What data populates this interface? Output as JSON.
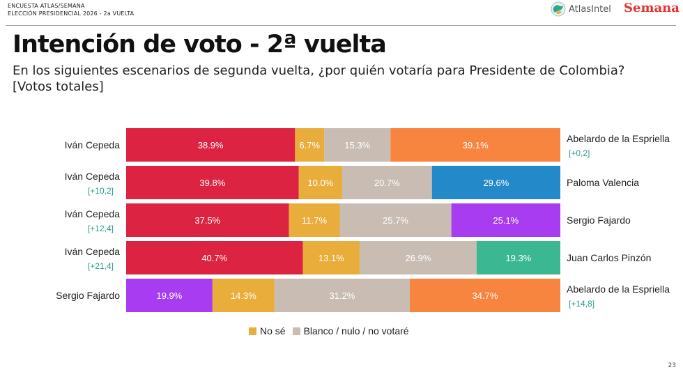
{
  "header": {
    "line1": "ENCUESTA ATLAS/SEMANA",
    "line2": "ELECCIÓN PRESIDENCIAL 2026 - 2a VUELTA",
    "logo_atlas": "AtlasIntel",
    "logo_semana": "Semana"
  },
  "title": "Intención de voto - 2ª vuelta",
  "subtitle_line1": "En los siguientes escenarios de segunda vuelta, ¿por quién votaría para Presidente de Colombia?",
  "subtitle_line2": "[Votos totales]",
  "legend": {
    "no_se": "No sé",
    "blanco": "Blanco / nulo / no votaré"
  },
  "colors": {
    "cepeda": "#dc2342",
    "no_se": "#e8ad3a",
    "blanco": "#c9bcb3",
    "de_la_espriella": "#f7843f",
    "valencia": "#2389c9",
    "fajardo": "#a83cf0",
    "pinzon": "#3bb892",
    "diff_text": "#2a9b8d"
  },
  "page_number": "23",
  "chart_data": {
    "type": "bar",
    "orientation": "horizontal",
    "stacked": true,
    "xlim": [
      0,
      100
    ],
    "rows": [
      {
        "left": "Iván Cepeda",
        "left_diff": "",
        "right": "Abelardo de la Espriella",
        "right_diff": "[+0,2]",
        "segments": [
          {
            "series": "left",
            "value": 38.9,
            "label": "38.9%",
            "color": "#dc2342"
          },
          {
            "series": "No sé",
            "value": 6.7,
            "label": "6.7%",
            "color": "#e8ad3a"
          },
          {
            "series": "Blanco / nulo / no votaré",
            "value": 15.3,
            "label": "15.3%",
            "color": "#c9bcb3"
          },
          {
            "series": "right",
            "value": 39.1,
            "label": "39.1%",
            "color": "#f7843f"
          }
        ]
      },
      {
        "left": "Iván Cepeda",
        "left_diff": "[+10,2]",
        "right": "Paloma Valencia",
        "right_diff": "",
        "segments": [
          {
            "series": "left",
            "value": 39.8,
            "label": "39.8%",
            "color": "#dc2342"
          },
          {
            "series": "No sé",
            "value": 10.0,
            "label": "10.0%",
            "color": "#e8ad3a"
          },
          {
            "series": "Blanco / nulo / no votaré",
            "value": 20.7,
            "label": "20.7%",
            "color": "#c9bcb3"
          },
          {
            "series": "right",
            "value": 29.6,
            "label": "29.6%",
            "color": "#2389c9"
          }
        ]
      },
      {
        "left": "Iván Cepeda",
        "left_diff": "[+12,4]",
        "right": "Sergio Fajardo",
        "right_diff": "",
        "segments": [
          {
            "series": "left",
            "value": 37.5,
            "label": "37.5%",
            "color": "#dc2342"
          },
          {
            "series": "No sé",
            "value": 11.7,
            "label": "11.7%",
            "color": "#e8ad3a"
          },
          {
            "series": "Blanco / nulo / no votaré",
            "value": 25.7,
            "label": "25.7%",
            "color": "#c9bcb3"
          },
          {
            "series": "right",
            "value": 25.1,
            "label": "25.1%",
            "color": "#a83cf0"
          }
        ]
      },
      {
        "left": "Iván Cepeda",
        "left_diff": "[+21,4]",
        "right": "Juan Carlos Pinzón",
        "right_diff": "",
        "segments": [
          {
            "series": "left",
            "value": 40.7,
            "label": "40.7%",
            "color": "#dc2342"
          },
          {
            "series": "No sé",
            "value": 13.1,
            "label": "13.1%",
            "color": "#e8ad3a"
          },
          {
            "series": "Blanco / nulo / no votaré",
            "value": 26.9,
            "label": "26.9%",
            "color": "#c9bcb3"
          },
          {
            "series": "right",
            "value": 19.3,
            "label": "19.3%",
            "color": "#3bb892"
          }
        ]
      },
      {
        "left": "Sergio Fajardo",
        "left_diff": "",
        "right": "Abelardo de la Espriella",
        "right_diff": "[+14,8]",
        "segments": [
          {
            "series": "left",
            "value": 19.9,
            "label": "19.9%",
            "color": "#a83cf0"
          },
          {
            "series": "No sé",
            "value": 14.3,
            "label": "14.3%",
            "color": "#e8ad3a"
          },
          {
            "series": "Blanco / nulo / no votaré",
            "value": 31.2,
            "label": "31.2%",
            "color": "#c9bcb3"
          },
          {
            "series": "right",
            "value": 34.7,
            "label": "34.7%",
            "color": "#f7843f"
          }
        ]
      }
    ]
  }
}
